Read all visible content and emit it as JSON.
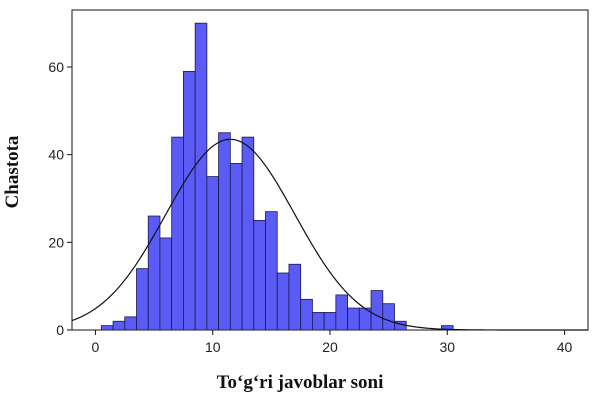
{
  "chart_data": {
    "type": "bar",
    "subtype": "histogram-with-normal-curve",
    "xlabel": "To‘g‘ri javoblar soni",
    "ylabel": "Chastota",
    "xlim": [
      -2,
      42
    ],
    "ylim": [
      0,
      73
    ],
    "x_ticks": [
      0,
      10,
      20,
      30,
      40
    ],
    "y_ticks": [
      0,
      20,
      40,
      60
    ],
    "bin_width": 1,
    "bins": [
      {
        "x": 1,
        "y": 1
      },
      {
        "x": 2,
        "y": 2
      },
      {
        "x": 3,
        "y": 3
      },
      {
        "x": 4,
        "y": 14
      },
      {
        "x": 5,
        "y": 26
      },
      {
        "x": 6,
        "y": 21
      },
      {
        "x": 7,
        "y": 44
      },
      {
        "x": 8,
        "y": 59
      },
      {
        "x": 9,
        "y": 70
      },
      {
        "x": 10,
        "y": 35
      },
      {
        "x": 11,
        "y": 45
      },
      {
        "x": 12,
        "y": 38
      },
      {
        "x": 13,
        "y": 44
      },
      {
        "x": 14,
        "y": 25
      },
      {
        "x": 15,
        "y": 27
      },
      {
        "x": 16,
        "y": 13
      },
      {
        "x": 17,
        "y": 15
      },
      {
        "x": 18,
        "y": 7
      },
      {
        "x": 19,
        "y": 4
      },
      {
        "x": 20,
        "y": 4
      },
      {
        "x": 21,
        "y": 8
      },
      {
        "x": 22,
        "y": 5
      },
      {
        "x": 23,
        "y": 5
      },
      {
        "x": 24,
        "y": 9
      },
      {
        "x": 25,
        "y": 6
      },
      {
        "x": 26,
        "y": 2
      },
      {
        "x": 30,
        "y": 1
      }
    ],
    "normal_curve": {
      "mean": 11.5,
      "sd": 5.5,
      "peak": 43.5
    },
    "grid": false,
    "colors": {
      "bar_fill": "#5b5bf5",
      "bar_stroke": "#1a1a50",
      "curve": "#111111",
      "frame": "#111111"
    }
  }
}
